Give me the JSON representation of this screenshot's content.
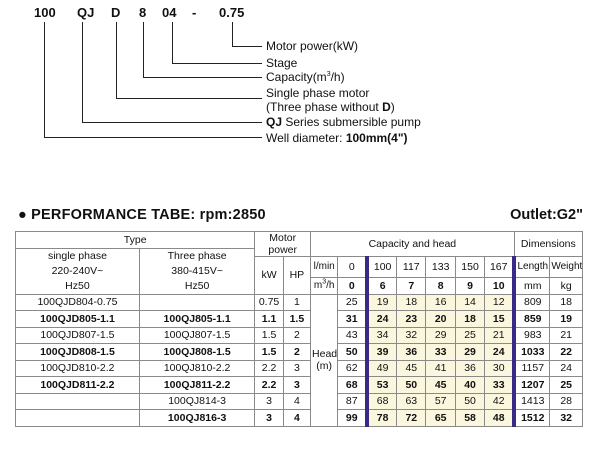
{
  "model_code": {
    "parts": [
      "100",
      "QJ",
      "D",
      "8",
      "04",
      "-",
      "0.75"
    ],
    "legend": [
      {
        "text": "Motor power(kW)"
      },
      {
        "text": "Stage"
      },
      {
        "text": "Capacity(m³/h)"
      },
      {
        "text": "Single phase motor"
      },
      {
        "text_before": "(Three phase without ",
        "bold": "D",
        "text_after": ")"
      },
      {
        "bold": "QJ",
        "text_after": " Series submersible pump"
      },
      {
        "text_before": "Well diameter: ",
        "bold": "100mm(4\")"
      }
    ]
  },
  "heading": {
    "title": "● PERFORMANCE TABE: rpm:2850",
    "outlet": "Outlet:G2\""
  },
  "table": {
    "headers": {
      "type": "Type",
      "single_phase": [
        "single phase",
        "220-240V~",
        "Hz50"
      ],
      "three_phase": [
        "Three phase",
        "380-415V~",
        "Hz50"
      ],
      "motor_power": [
        "Motor",
        "power"
      ],
      "kw": "kW",
      "hp": "HP",
      "capacity_head": "Capacity and head",
      "dimensions": "Dimensions",
      "lmin": "l/min",
      "m3h": "m³/h",
      "lmin_values": [
        "0",
        "100",
        "117",
        "133",
        "150",
        "167"
      ],
      "m3h_values": [
        "0",
        "6",
        "7",
        "8",
        "9",
        "10"
      ],
      "length": "Length",
      "weight": "Weight",
      "length_unit": "mm",
      "weight_unit": "kg",
      "head": [
        "Head",
        "(m)"
      ]
    },
    "rows": [
      {
        "single": "100QJD804-0.75",
        "three": "",
        "kw": "0.75",
        "hp": "1",
        "heads": [
          "25",
          "19",
          "18",
          "16",
          "14",
          "12"
        ],
        "length": "809",
        "weight": "18",
        "bold": false
      },
      {
        "single": "100QJD805-1.1",
        "three": "100QJ805-1.1",
        "kw": "1.1",
        "hp": "1.5",
        "heads": [
          "31",
          "24",
          "23",
          "20",
          "18",
          "15"
        ],
        "length": "859",
        "weight": "19",
        "bold": true
      },
      {
        "single": "100QJD807-1.5",
        "three": "100QJ807-1.5",
        "kw": "1.5",
        "hp": "2",
        "heads": [
          "43",
          "34",
          "32",
          "29",
          "25",
          "21"
        ],
        "length": "983",
        "weight": "21",
        "bold": false
      },
      {
        "single": "100QJD808-1.5",
        "three": "100QJ808-1.5",
        "kw": "1.5",
        "hp": "2",
        "heads": [
          "50",
          "39",
          "36",
          "33",
          "29",
          "24"
        ],
        "length": "1033",
        "weight": "22",
        "bold": true
      },
      {
        "single": "100QJD810-2.2",
        "three": "100QJ810-2.2",
        "kw": "2.2",
        "hp": "3",
        "heads": [
          "62",
          "49",
          "45",
          "41",
          "36",
          "30"
        ],
        "length": "1157",
        "weight": "24",
        "bold": false
      },
      {
        "single": "100QJD811-2.2",
        "three": "100QJ811-2.2",
        "kw": "2.2",
        "hp": "3",
        "heads": [
          "68",
          "53",
          "50",
          "45",
          "40",
          "33"
        ],
        "length": "1207",
        "weight": "25",
        "bold": true
      },
      {
        "single": "",
        "three": "100QJ814-3",
        "kw": "3",
        "hp": "4",
        "heads": [
          "87",
          "68",
          "63",
          "57",
          "50",
          "42"
        ],
        "length": "1413",
        "weight": "28",
        "bold": false
      },
      {
        "single": "",
        "three": "100QJ816-3",
        "kw": "3",
        "hp": "4",
        "heads": [
          "99",
          "78",
          "72",
          "65",
          "58",
          "48"
        ],
        "length": "1512",
        "weight": "32",
        "bold": true
      }
    ]
  },
  "colors": {
    "accent_bar": "#3a2a86",
    "shade": "#fbf7df",
    "text": "#111111"
  }
}
